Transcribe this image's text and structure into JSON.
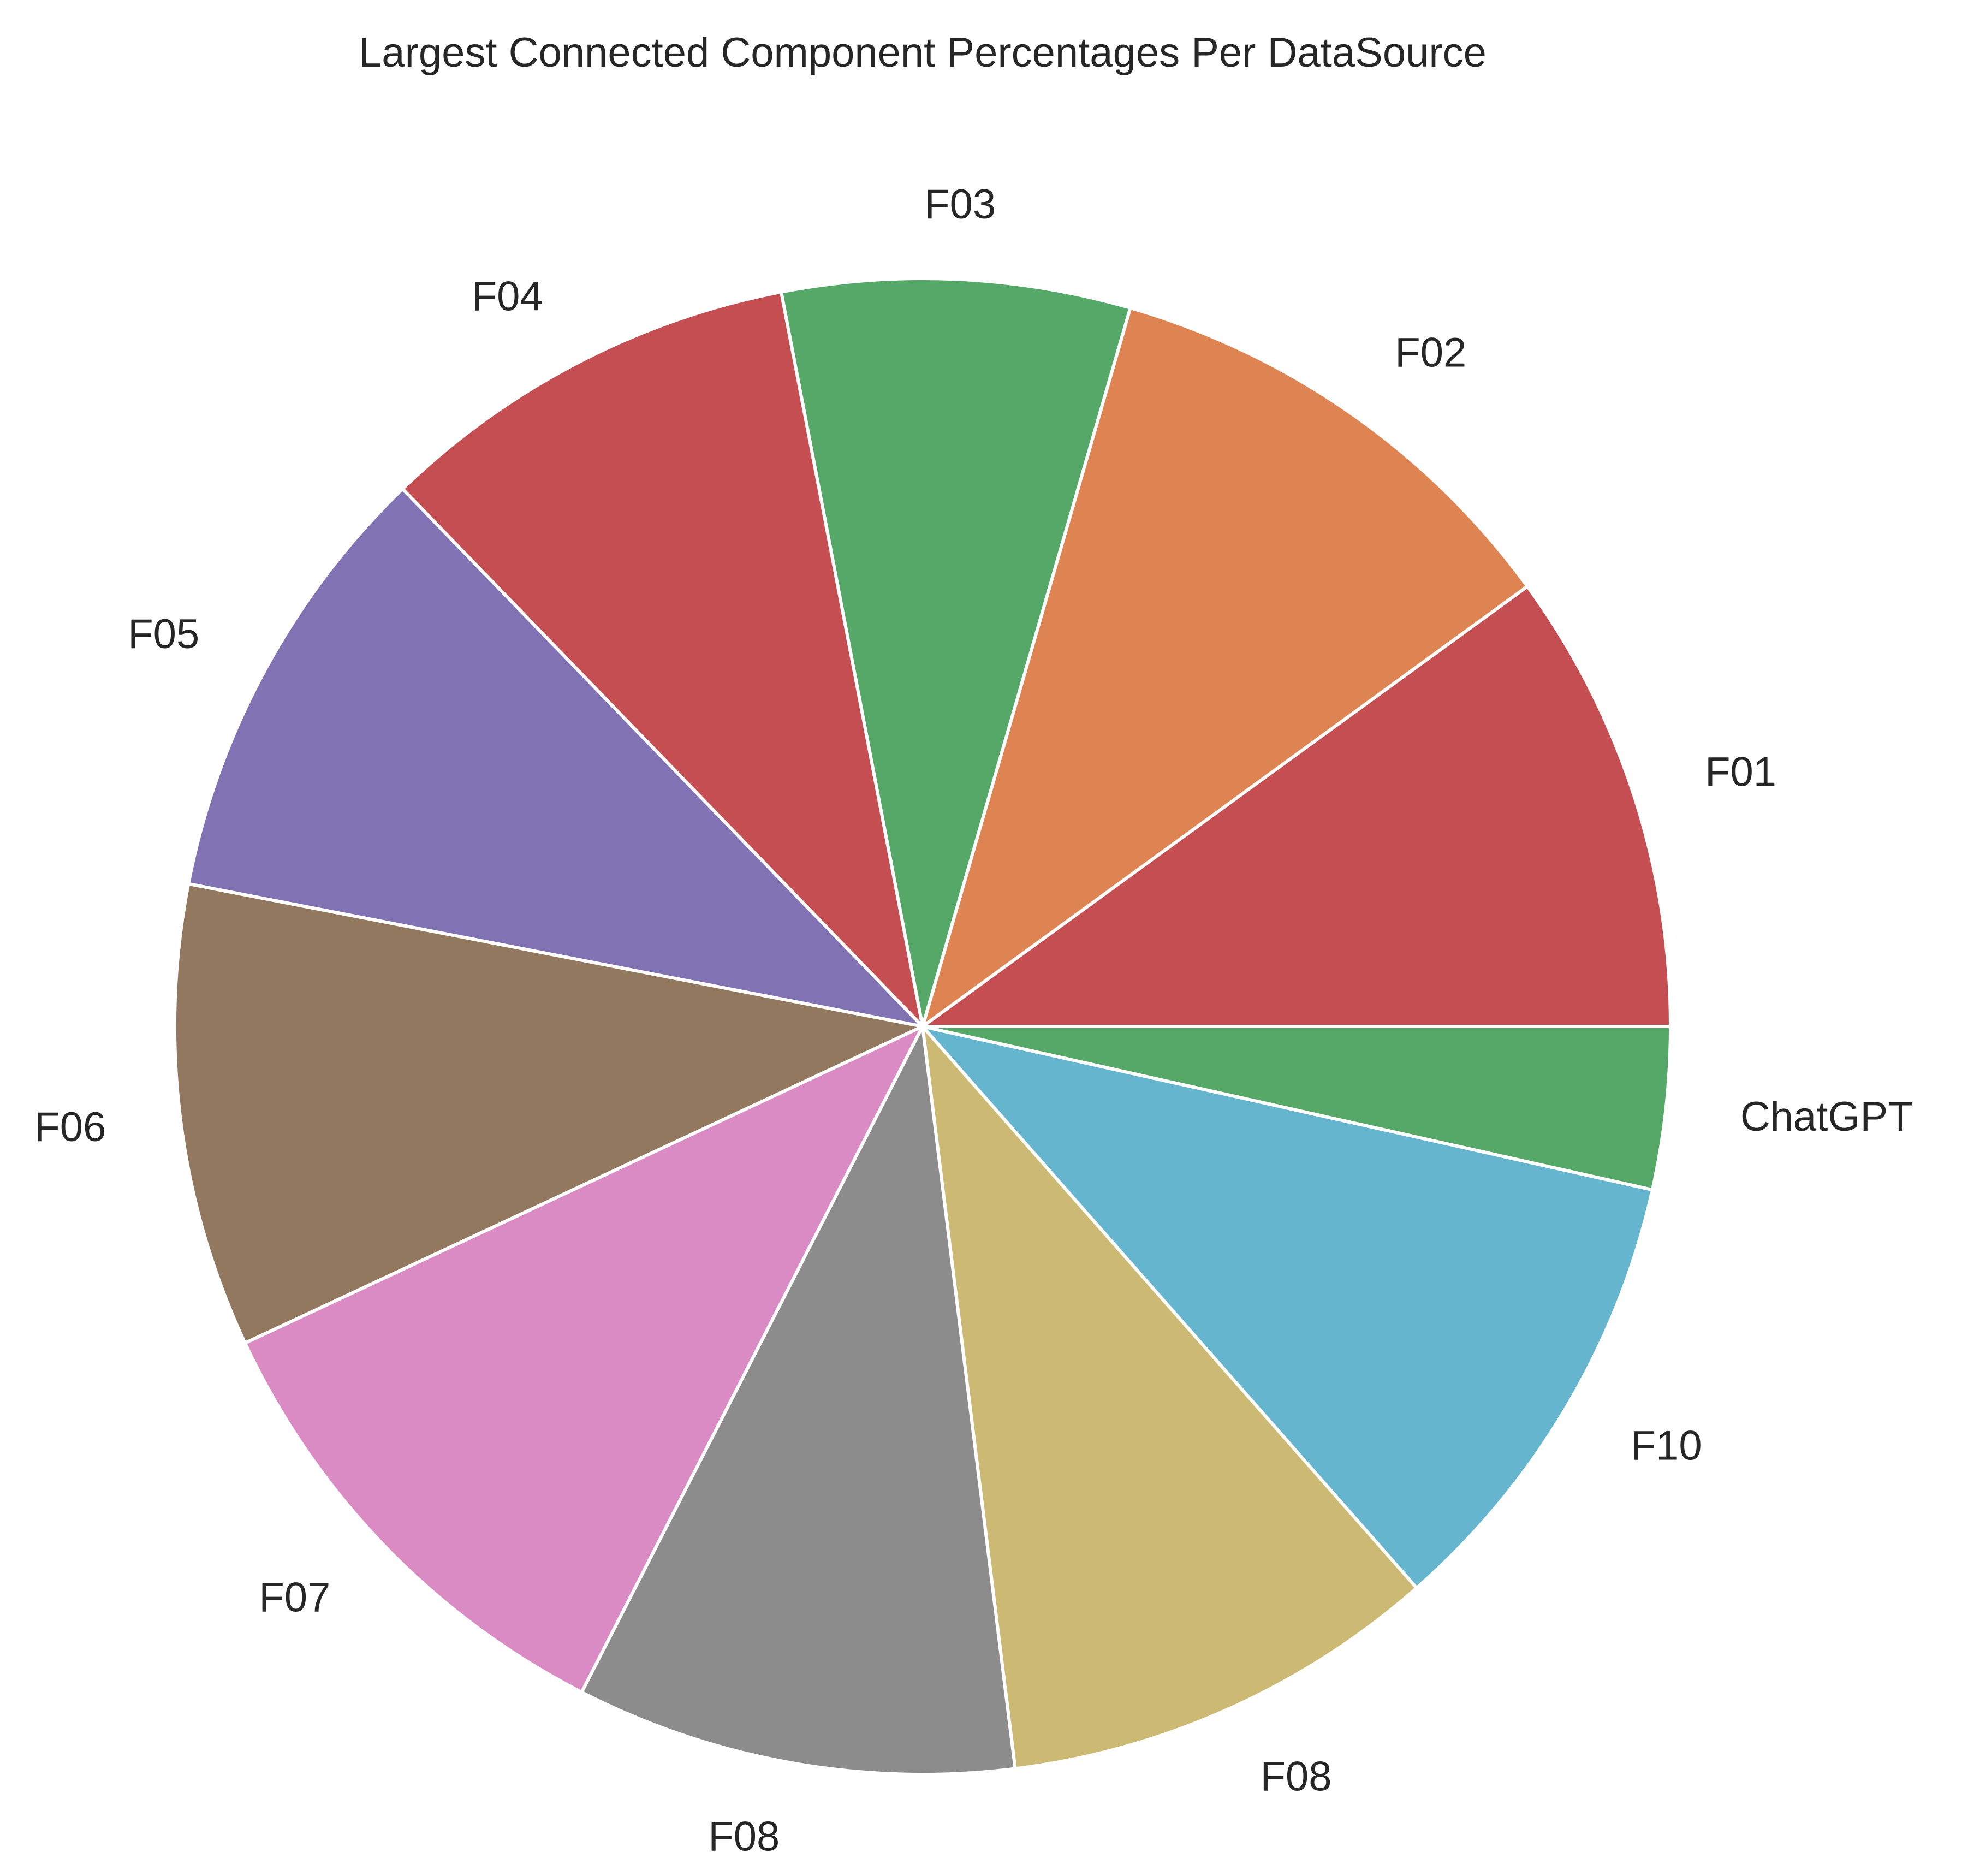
{
  "chart_data": {
    "type": "pie",
    "title": "Largest Connected Component Percentages Per DataSource",
    "start_angle_deg": 0,
    "direction": "counterclockwise",
    "slices": [
      {
        "label": "F01",
        "value": 10.0,
        "color": "#c44e52"
      },
      {
        "label": "F02",
        "value": 10.5,
        "color": "#dd8452"
      },
      {
        "label": "F03",
        "value": 7.5,
        "color": "#55a868"
      },
      {
        "label": "F04",
        "value": 9.2,
        "color": "#c44e52"
      },
      {
        "label": "F05",
        "value": 9.7,
        "color": "#8172b3"
      },
      {
        "label": "F06",
        "value": 10.0,
        "color": "#937860"
      },
      {
        "label": "F07",
        "value": 10.5,
        "color": "#da8bc3"
      },
      {
        "label": "F08",
        "value": 9.5,
        "color": "#8c8c8c"
      },
      {
        "label": "F08",
        "value": 9.5,
        "color": "#ccb974"
      },
      {
        "label": "F10",
        "value": 10.0,
        "color": "#64b5cd"
      },
      {
        "label": "ChatGPT",
        "value": 3.5,
        "color": "#55a868"
      }
    ]
  }
}
